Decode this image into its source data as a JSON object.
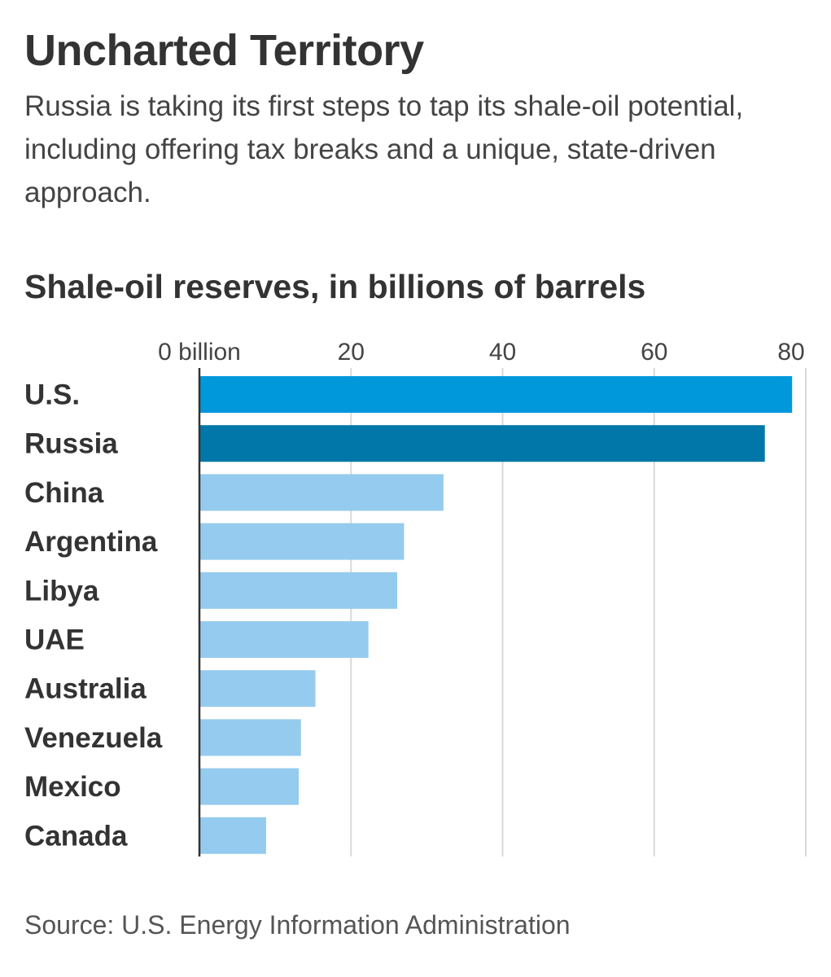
{
  "header": {
    "title": "Uncharted Territory",
    "subtitle": "Russia is taking its first steps to tap its shale-oil potential, including offering tax breaks and a unique, state-driven approach."
  },
  "chart_data": {
    "type": "bar",
    "orientation": "horizontal",
    "title": "Shale-oil reserves, in billions of barrels",
    "categories": [
      "U.S.",
      "Russia",
      "China",
      "Argentina",
      "Libya",
      "UAE",
      "Australia",
      "Venezuela",
      "Mexico",
      "Canada"
    ],
    "values": [
      78.2,
      74.6,
      32.2,
      27.0,
      26.1,
      22.3,
      15.3,
      13.4,
      13.1,
      8.8
    ],
    "xlim": [
      0,
      80
    ],
    "ticks": [
      0,
      20,
      40,
      60,
      80
    ],
    "tick_labels": [
      "0 billion",
      "20",
      "40",
      "60",
      "80"
    ],
    "grid": true,
    "colors": {
      "U.S.": "#0098db",
      "Russia": "#0077a8",
      "default": "#95cbee"
    }
  },
  "source": "Source: U.S. Energy Information Administration"
}
